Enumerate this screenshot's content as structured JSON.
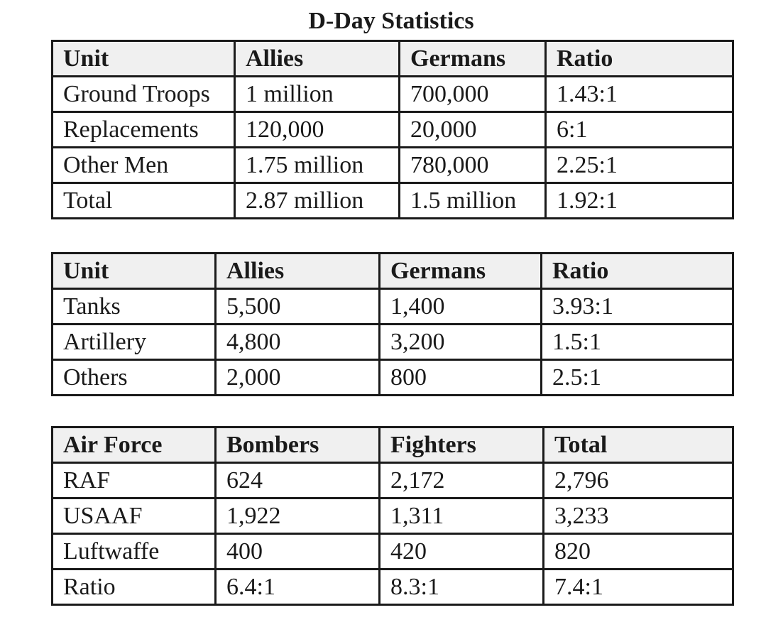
{
  "title": "D-Day Statistics",
  "tables": [
    {
      "headers": [
        "Unit",
        "Allies",
        "Germans",
        "Ratio"
      ],
      "rows": [
        [
          "Ground Troops",
          "1 million",
          "700,000",
          "1.43:1"
        ],
        [
          "Replacements",
          "120,000",
          "20,000",
          "6:1"
        ],
        [
          "Other Men",
          "1.75 million",
          "780,000",
          "2.25:1"
        ],
        [
          "Total",
          "2.87 million",
          "1.5 million",
          "1.92:1"
        ]
      ]
    },
    {
      "headers": [
        "Unit",
        "Allies",
        "Germans",
        "Ratio"
      ],
      "rows": [
        [
          "Tanks",
          "5,500",
          "1,400",
          "3.93:1"
        ],
        [
          "Artillery",
          "4,800",
          "3,200",
          "1.5:1"
        ],
        [
          "Others",
          "2,000",
          "800",
          "2.5:1"
        ]
      ]
    },
    {
      "headers": [
        "Air Force",
        "Bombers",
        "Fighters",
        "Total"
      ],
      "rows": [
        [
          "RAF",
          "624",
          "2,172",
          "2,796"
        ],
        [
          "USAAF",
          "1,922",
          "1,311",
          "3,233"
        ],
        [
          "Luftwaffe",
          "400",
          "420",
          "820"
        ],
        [
          "Ratio",
          "6.4:1",
          "8.3:1",
          "7.4:1"
        ]
      ]
    }
  ]
}
